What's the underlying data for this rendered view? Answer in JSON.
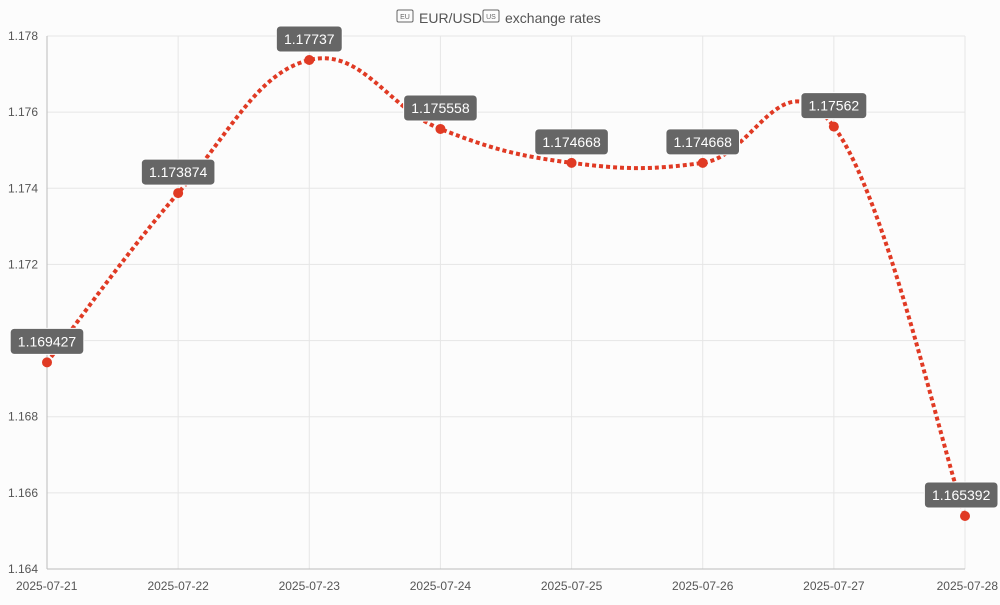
{
  "chart_data": {
    "type": "line",
    "title": "🇪🇺 EUR/USD 🇺🇸 exchange rates",
    "title_flags": {
      "left": "EU",
      "right": "US"
    },
    "title_text": "EUR/USD",
    "title_suffix": "exchange rates",
    "xlabel": "",
    "ylabel": "",
    "x": [
      "2025-07-21",
      "2025-07-22",
      "2025-07-23",
      "2025-07-24",
      "2025-07-25",
      "2025-07-26",
      "2025-07-27",
      "2025-07-28"
    ],
    "series": [
      {
        "values": [
          1.169427,
          1.173874,
          1.17737,
          1.175558,
          1.174668,
          1.174668,
          1.17562,
          1.165392
        ],
        "labels": [
          "1.169427",
          "1.173874",
          "1.17737",
          "1.175558",
          "1.174668",
          "1.174668",
          "1.17562",
          "1.165392"
        ],
        "color": "#e03a24",
        "line_style": "dotted",
        "smooth": true
      }
    ],
    "y_ticks": [
      "1.164",
      "1.166",
      "1.168",
      "1.17",
      "1.172",
      "1.174",
      "1.176",
      "1.178"
    ],
    "ylim": [
      1.164,
      1.178
    ],
    "grid": true,
    "legend": "none",
    "colors": {
      "background": "#fcfcfc",
      "grid": "#e6e6e6",
      "axis": "#bdbdbd",
      "label_box": "#666666",
      "label_text": "#ffffff",
      "tick_text": "#555555"
    }
  }
}
